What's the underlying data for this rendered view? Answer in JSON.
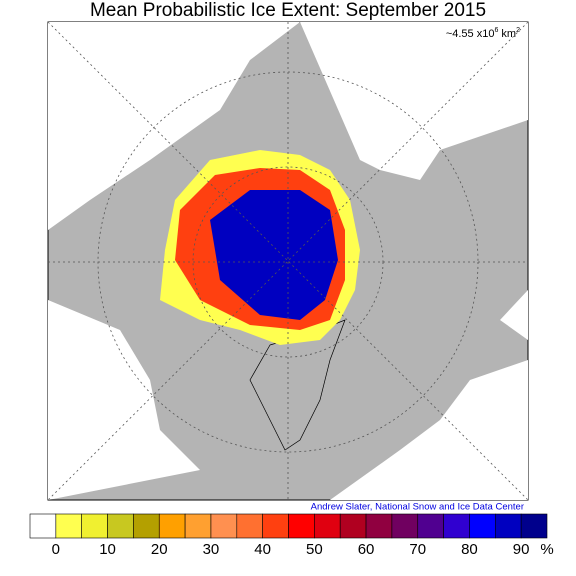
{
  "title": "Mean Probabilistic Ice Extent: September 2015",
  "annotation": {
    "text": "~4.55 x10",
    "exp": "6",
    "unit": " km",
    "unit_exp": "2"
  },
  "credit": "Andrew Slater, National Snow and Ice Data Center",
  "colorbar": {
    "range": [
      -5,
      95
    ],
    "colors": [
      "#ffffff",
      "#ffff50",
      "#f0f030",
      "#c8c820",
      "#b4a000",
      "#ffa000",
      "#ffa030",
      "#ff9050",
      "#ff7030",
      "#ff4010",
      "#ff0000",
      "#e00010",
      "#b00020",
      "#900040",
      "#700060",
      "#500090",
      "#3000d0",
      "#0000ff",
      "#0000c0",
      "#00008c"
    ],
    "ticks": [
      0,
      10,
      20,
      30,
      40,
      50,
      60,
      70,
      80,
      90
    ],
    "unit": "%"
  }
}
